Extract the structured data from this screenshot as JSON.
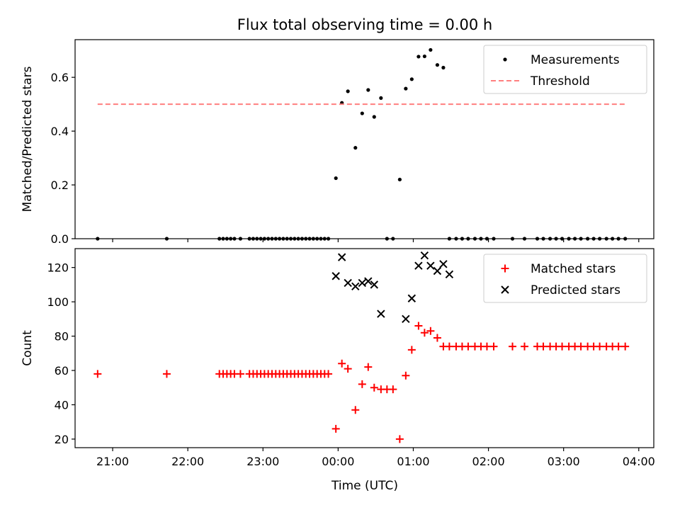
{
  "chart_data": {
    "title": "Flux total observing time = 0.00 h",
    "xlabel": "Time (UTC)",
    "x_tick_labels": [
      "21:00",
      "22:00",
      "23:00",
      "00:00",
      "01:00",
      "02:00",
      "03:00",
      "04:00"
    ],
    "xlim_hours": [
      -3.5,
      4.2
    ],
    "panels": [
      {
        "type": "scatter",
        "ylabel": "Matched/Predicted stars",
        "ylim": [
          0,
          0.74
        ],
        "y_ticks": [
          0.0,
          0.2,
          0.4,
          0.6
        ],
        "y_tick_labels": [
          "0.0",
          "0.2",
          "0.4",
          "0.6"
        ],
        "legend_position": "top-right",
        "series": [
          {
            "name": "Measurements",
            "marker": "dot",
            "color": "#000000",
            "x": [
              -3.2,
              -2.28,
              -1.58,
              -1.53,
              -1.48,
              -1.43,
              -1.38,
              -1.3,
              -1.18,
              -1.13,
              -1.08,
              -1.03,
              -0.98,
              -0.93,
              -0.88,
              -0.83,
              -0.78,
              -0.73,
              -0.68,
              -0.63,
              -0.58,
              -0.53,
              -0.48,
              -0.43,
              -0.38,
              -0.33,
              -0.28,
              -0.23,
              -0.18,
              -0.13,
              -0.03,
              0.05,
              0.13,
              0.23,
              0.32,
              0.4,
              0.48,
              0.57,
              0.65,
              0.73,
              0.82,
              0.9,
              0.98,
              1.07,
              1.15,
              1.23,
              1.32,
              1.4,
              1.48,
              1.57,
              1.65,
              1.73,
              1.82,
              1.9,
              1.98,
              2.07,
              2.32,
              2.48,
              2.65,
              2.73,
              2.82,
              2.9,
              2.98,
              3.07,
              3.15,
              3.23,
              3.32,
              3.4,
              3.48,
              3.57,
              3.65,
              3.73,
              3.82
            ],
            "y": [
              0,
              0,
              0,
              0,
              0,
              0,
              0,
              0,
              0,
              0,
              0,
              0,
              0,
              0,
              0,
              0,
              0,
              0,
              0,
              0,
              0,
              0,
              0,
              0,
              0,
              0,
              0,
              0,
              0,
              0,
              0.225,
              0.505,
              0.548,
              0.338,
              0.466,
              0.553,
              0.453,
              0.523,
              0,
              0,
              0.22,
              0.558,
              0.593,
              0.677,
              0.678,
              0.702,
              0.646,
              0.636,
              0,
              0,
              0,
              0,
              0,
              0,
              0,
              0,
              0,
              0,
              0,
              0,
              0,
              0,
              0,
              0,
              0,
              0,
              0,
              0,
              0,
              0,
              0,
              0,
              0
            ]
          },
          {
            "name": "Threshold",
            "marker": "dashed-line",
            "color": "#ff7f7f",
            "x": [
              -3.2,
              3.82
            ],
            "y": [
              0.5,
              0.5
            ]
          }
        ]
      },
      {
        "type": "scatter",
        "ylabel": "Count",
        "ylim": [
          15,
          131
        ],
        "y_ticks": [
          20,
          40,
          60,
          80,
          100,
          120
        ],
        "y_tick_labels": [
          "20",
          "40",
          "60",
          "80",
          "100",
          "120"
        ],
        "legend_position": "top-right",
        "series": [
          {
            "name": "Matched stars",
            "marker": "plus",
            "color": "#ff0000",
            "x": [
              -3.2,
              -2.28,
              -1.58,
              -1.53,
              -1.48,
              -1.43,
              -1.38,
              -1.3,
              -1.18,
              -1.13,
              -1.08,
              -1.03,
              -0.98,
              -0.93,
              -0.88,
              -0.83,
              -0.78,
              -0.73,
              -0.68,
              -0.63,
              -0.58,
              -0.53,
              -0.48,
              -0.43,
              -0.38,
              -0.33,
              -0.28,
              -0.23,
              -0.18,
              -0.13,
              -0.03,
              0.05,
              0.13,
              0.23,
              0.32,
              0.4,
              0.48,
              0.57,
              0.65,
              0.73,
              0.82,
              0.9,
              0.98,
              1.07,
              1.15,
              1.23,
              1.32,
              1.4,
              1.48,
              1.57,
              1.65,
              1.73,
              1.82,
              1.9,
              1.98,
              2.07,
              2.32,
              2.48,
              2.65,
              2.73,
              2.82,
              2.9,
              2.98,
              3.07,
              3.15,
              3.23,
              3.32,
              3.4,
              3.48,
              3.57,
              3.65,
              3.73,
              3.82
            ],
            "y": [
              58,
              58,
              58,
              58,
              58,
              58,
              58,
              58,
              58,
              58,
              58,
              58,
              58,
              58,
              58,
              58,
              58,
              58,
              58,
              58,
              58,
              58,
              58,
              58,
              58,
              58,
              58,
              58,
              58,
              58,
              26,
              64,
              61,
              37,
              52,
              62,
              50,
              49,
              49,
              49,
              20,
              57,
              72,
              86,
              82,
              83,
              79,
              74,
              74,
              74,
              74,
              74,
              74,
              74,
              74,
              74,
              74,
              74,
              74,
              74,
              74,
              74,
              74,
              74,
              74,
              74,
              74,
              74,
              74,
              74,
              74,
              74,
              74
            ]
          },
          {
            "name": "Predicted stars",
            "marker": "x",
            "color": "#000000",
            "x": [
              -0.03,
              0.05,
              0.13,
              0.23,
              0.32,
              0.4,
              0.48,
              0.57,
              0.9,
              0.98,
              1.07,
              1.15,
              1.23,
              1.32,
              1.4,
              1.48
            ],
            "y": [
              115,
              126,
              111,
              109,
              111,
              112,
              110,
              93,
              90,
              102,
              121,
              127,
              121,
              118,
              122,
              116
            ]
          }
        ]
      }
    ]
  }
}
